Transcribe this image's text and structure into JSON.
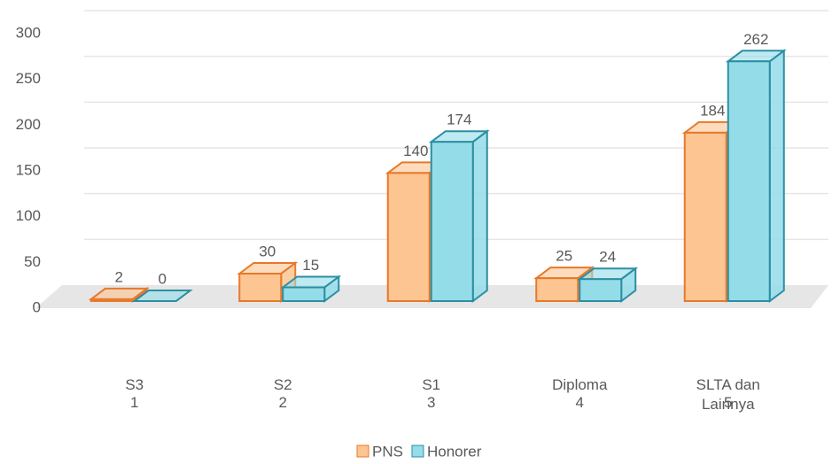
{
  "chart_data": {
    "type": "bar3d",
    "categories": [
      "S3",
      "S2",
      "S1",
      "Diploma",
      "SLTA dan Lainnya"
    ],
    "category_numbers": [
      1,
      2,
      3,
      4,
      5
    ],
    "series": [
      {
        "name": "PNS",
        "color": "#fcc592",
        "stroke": "#e8782a",
        "values": [
          2,
          30,
          140,
          25,
          184
        ]
      },
      {
        "name": "Honorer",
        "color": "#95dce9",
        "stroke": "#2b8fa3",
        "values": [
          0,
          15,
          174,
          24,
          262
        ]
      }
    ],
    "ylim": [
      0,
      300
    ],
    "yticks": [
      0,
      50,
      100,
      150,
      200,
      250,
      300
    ],
    "grid": true,
    "legend": "bottom"
  }
}
